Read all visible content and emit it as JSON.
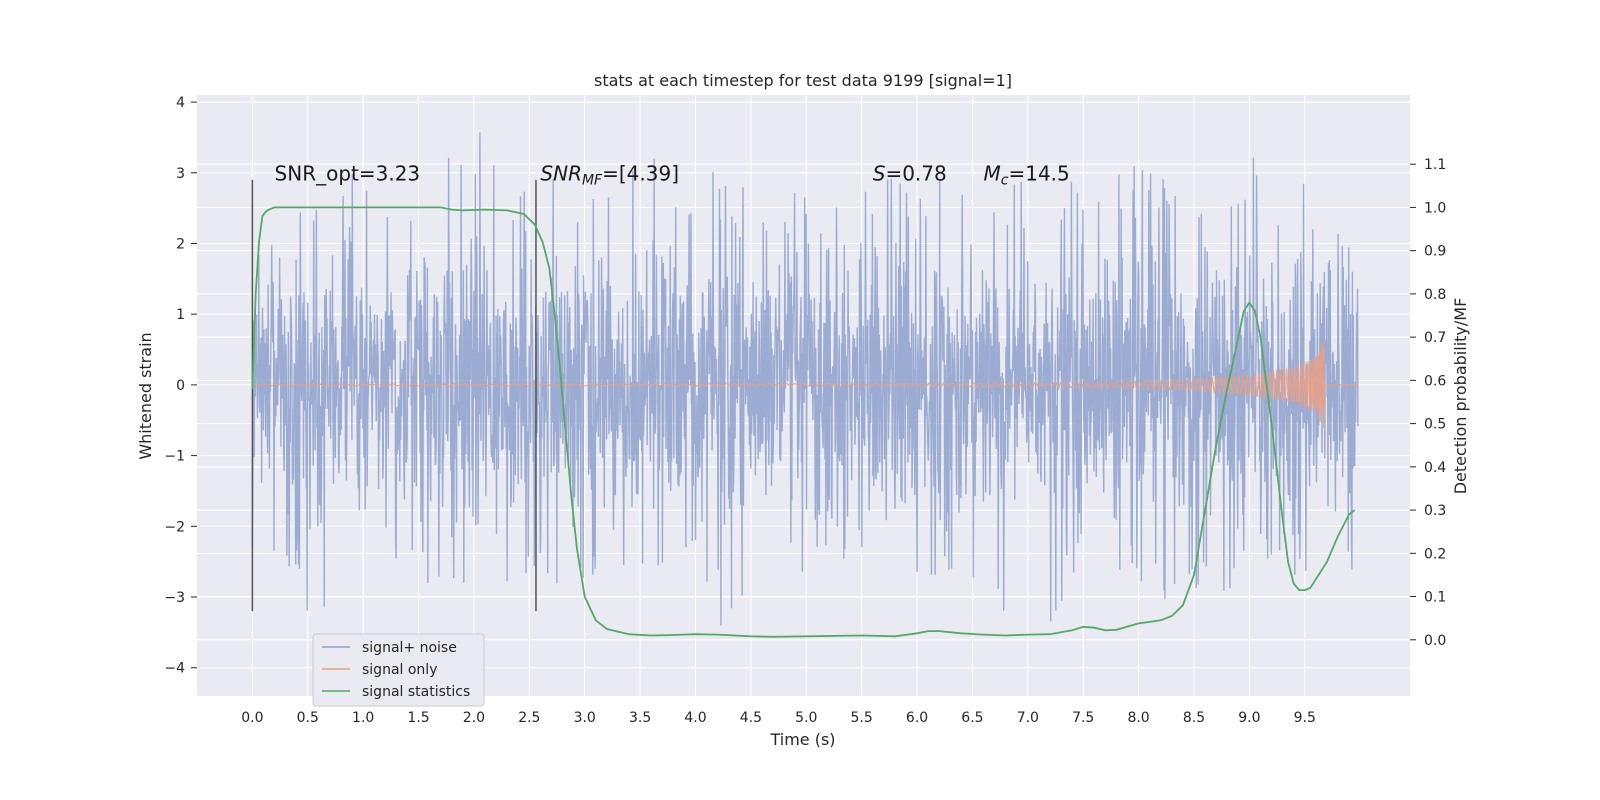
{
  "chart_data": {
    "type": "line",
    "title": "stats at each timestep for test data 9199 [signal=1]",
    "xlabel": "Time (s)",
    "ylabel": "Whitened strain",
    "y2label": "Detection probability/MF",
    "xlim": [
      -0.5,
      10.45
    ],
    "ylim": [
      -4.4,
      4.1
    ],
    "y2lim": [
      -0.13,
      1.26
    ],
    "xticks": [
      "0.0",
      "0.5",
      "1.0",
      "1.5",
      "2.0",
      "2.5",
      "3.0",
      "3.5",
      "4.0",
      "4.5",
      "5.0",
      "5.5",
      "6.0",
      "6.5",
      "7.0",
      "7.5",
      "8.0",
      "8.5",
      "9.0",
      "9.5"
    ],
    "yticks": [
      "−4",
      "−3",
      "−2",
      "−1",
      "0",
      "1",
      "2",
      "3",
      "4"
    ],
    "y2ticks": [
      "0.0",
      "0.1",
      "0.2",
      "0.3",
      "0.4",
      "0.5",
      "0.6",
      "0.7",
      "0.8",
      "0.9",
      "1.0",
      "1.1"
    ],
    "grid": true,
    "legend_position": "lower-left",
    "series": [
      {
        "name": "signal+ noise",
        "color": "#8da0cb",
        "axis": "left",
        "t_range": [
          0.0,
          9.98
        ],
        "envelope": [
          [
            0.0,
            2.3,
            -2.3
          ],
          [
            0.5,
            2.9,
            -3.2
          ],
          [
            1.0,
            3.0,
            -3.4
          ],
          [
            1.5,
            3.1,
            -3.0
          ],
          [
            2.0,
            3.6,
            -3.2
          ],
          [
            2.5,
            3.5,
            -3.2
          ],
          [
            3.0,
            2.8,
            -2.8
          ],
          [
            3.5,
            3.6,
            -3.0
          ],
          [
            4.0,
            3.1,
            -3.6
          ],
          [
            4.5,
            2.9,
            -3.2
          ],
          [
            5.0,
            2.7,
            -3.0
          ],
          [
            5.5,
            2.9,
            -3.1
          ],
          [
            6.0,
            3.1,
            -2.9
          ],
          [
            6.5,
            3.0,
            -3.1
          ],
          [
            7.0,
            2.9,
            -3.7
          ],
          [
            7.5,
            3.0,
            -3.0
          ],
          [
            8.0,
            3.1,
            -2.8
          ],
          [
            8.5,
            3.0,
            -3.3
          ],
          [
            9.0,
            3.2,
            -2.7
          ],
          [
            9.5,
            3.4,
            -2.7
          ],
          [
            9.98,
            3.4,
            -2.6
          ]
        ]
      },
      {
        "name": "signal only",
        "color": "#e5a08a",
        "axis": "left",
        "t_range": [
          0.0,
          9.98
        ],
        "chirp_end": 9.68,
        "amplitude": [
          [
            0.0,
            0.01
          ],
          [
            6.0,
            0.02
          ],
          [
            7.5,
            0.04
          ],
          [
            8.5,
            0.08
          ],
          [
            9.0,
            0.15
          ],
          [
            9.4,
            0.25
          ],
          [
            9.6,
            0.4
          ],
          [
            9.68,
            0.65
          ]
        ]
      },
      {
        "name": "signal statistics",
        "color": "#55a868",
        "axis": "right",
        "x": [
          0.0,
          0.03,
          0.06,
          0.09,
          0.12,
          0.15,
          0.2,
          0.3,
          0.5,
          0.8,
          1.0,
          1.3,
          1.5,
          1.7,
          1.8,
          1.9,
          2.1,
          2.3,
          2.45,
          2.55,
          2.62,
          2.68,
          2.73,
          2.78,
          2.83,
          2.88,
          2.93,
          3.0,
          3.1,
          3.2,
          3.4,
          3.6,
          3.8,
          4.0,
          4.2,
          4.5,
          4.7,
          5.0,
          5.5,
          5.8,
          6.0,
          6.1,
          6.2,
          6.4,
          6.6,
          6.8,
          7.0,
          7.2,
          7.4,
          7.5,
          7.6,
          7.7,
          7.8,
          8.0,
          8.2,
          8.3,
          8.4,
          8.5,
          8.6,
          8.7,
          8.8,
          8.9,
          8.95,
          9.0,
          9.05,
          9.1,
          9.2,
          9.3,
          9.35,
          9.4,
          9.45,
          9.5,
          9.55,
          9.6,
          9.7,
          9.8,
          9.9,
          9.95
        ],
        "values": [
          0.58,
          0.8,
          0.92,
          0.98,
          0.99,
          0.995,
          1.0,
          1.0,
          1.0,
          1.0,
          1.0,
          1.0,
          1.0,
          1.0,
          0.995,
          0.993,
          0.995,
          0.993,
          0.985,
          0.96,
          0.92,
          0.86,
          0.75,
          0.62,
          0.47,
          0.33,
          0.21,
          0.1,
          0.045,
          0.025,
          0.013,
          0.01,
          0.011,
          0.013,
          0.012,
          0.008,
          0.007,
          0.008,
          0.01,
          0.008,
          0.015,
          0.02,
          0.02,
          0.015,
          0.012,
          0.01,
          0.012,
          0.013,
          0.022,
          0.03,
          0.028,
          0.022,
          0.023,
          0.038,
          0.045,
          0.055,
          0.08,
          0.15,
          0.3,
          0.45,
          0.58,
          0.7,
          0.76,
          0.78,
          0.76,
          0.7,
          0.5,
          0.28,
          0.18,
          0.13,
          0.115,
          0.115,
          0.12,
          0.14,
          0.18,
          0.24,
          0.29,
          0.3
        ]
      }
    ],
    "vlines": [
      0.0,
      2.56
    ],
    "annotations": [
      {
        "x": 0.2,
        "y": 2.95,
        "text": "SNR_opt=3.23"
      },
      {
        "x": 2.6,
        "y": 2.95,
        "name": "SNR",
        "sub": "MF",
        "rest": "=[4.39]"
      },
      {
        "x": 5.6,
        "y": 2.95,
        "name": "S",
        "rest": "=0.78"
      },
      {
        "x": 6.6,
        "y": 2.95,
        "name": "M",
        "sub": "c",
        "rest": "=14.5"
      }
    ]
  }
}
